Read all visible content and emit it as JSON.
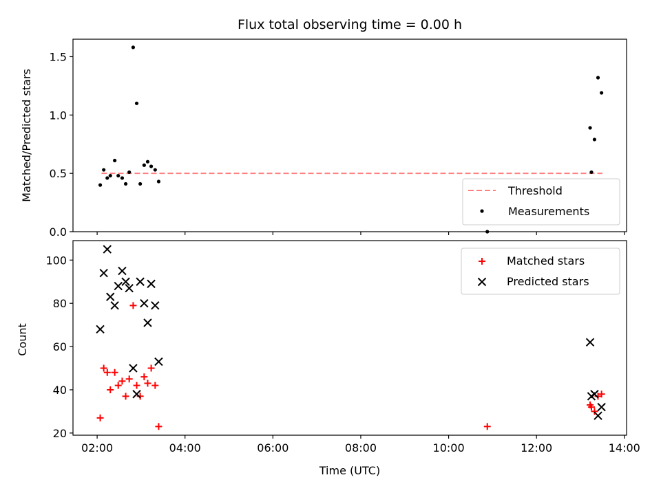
{
  "chart_data": {
    "type": "scatter",
    "title": "Flux total observing time = 0.00 h",
    "xlabel": "Time (UTC)",
    "x_ticks": [
      "02:00",
      "04:00",
      "06:00",
      "08:00",
      "10:00",
      "12:00",
      "14:00"
    ],
    "x_tick_hours": [
      2,
      4,
      6,
      8,
      10,
      12,
      14
    ],
    "xlim_hours": [
      1.45,
      14.05
    ],
    "top_panel": {
      "ylabel": "Matched/Predicted stars",
      "ylim": [
        0.0,
        1.65
      ],
      "y_ticks": [
        "0.0",
        "0.5",
        "1.0",
        "1.5"
      ],
      "y_tick_values": [
        0.0,
        0.5,
        1.0,
        1.5
      ],
      "legend_position": "lower right",
      "threshold": {
        "name": "Threshold",
        "value": 0.5,
        "x_range_hours": [
          2.1,
          13.5
        ],
        "color": "#ff7f7f"
      },
      "measurements": {
        "name": "Measurements",
        "color": "#000000",
        "x_hours": [
          2.07,
          2.15,
          2.23,
          2.3,
          2.4,
          2.48,
          2.57,
          2.65,
          2.73,
          2.82,
          2.9,
          2.98,
          3.07,
          3.15,
          3.23,
          3.32,
          3.4,
          10.88,
          13.22,
          13.25,
          13.32,
          13.4,
          13.48
        ],
        "y": [
          0.4,
          0.53,
          0.46,
          0.48,
          0.61,
          0.48,
          0.46,
          0.41,
          0.51,
          1.58,
          1.1,
          0.41,
          0.57,
          0.6,
          0.56,
          0.53,
          0.43,
          0.0,
          0.89,
          0.51,
          0.79,
          1.32,
          1.19
        ]
      }
    },
    "bottom_panel": {
      "ylabel": "Count",
      "ylim": [
        19,
        109
      ],
      "y_ticks": [
        "20",
        "40",
        "60",
        "80",
        "100"
      ],
      "y_tick_values": [
        20,
        40,
        60,
        80,
        100
      ],
      "legend_position": "upper right",
      "matched": {
        "name": "Matched stars",
        "color": "#ff0000",
        "x_hours": [
          2.07,
          2.15,
          2.23,
          2.3,
          2.4,
          2.48,
          2.57,
          2.65,
          2.73,
          2.82,
          2.9,
          2.98,
          3.07,
          3.15,
          3.23,
          3.32,
          3.4,
          10.88,
          13.22,
          13.25,
          13.32,
          13.4,
          13.48
        ],
        "y": [
          27,
          50,
          48,
          40,
          48,
          42,
          44,
          37,
          45,
          79,
          42,
          37,
          46,
          43,
          50,
          42,
          23,
          23,
          33,
          32,
          30,
          37,
          38
        ]
      },
      "predicted": {
        "name": "Predicted stars",
        "color": "#000000",
        "x_hours": [
          2.07,
          2.15,
          2.23,
          2.3,
          2.4,
          2.48,
          2.57,
          2.65,
          2.73,
          2.82,
          2.9,
          2.98,
          3.07,
          3.15,
          3.23,
          3.32,
          3.4,
          13.22,
          13.25,
          13.32,
          13.4,
          13.48
        ],
        "y": [
          68,
          94,
          105,
          83,
          79,
          88,
          95,
          90,
          87,
          50,
          38,
          90,
          80,
          71,
          89,
          79,
          53,
          62,
          37,
          38,
          28,
          32
        ]
      }
    }
  }
}
